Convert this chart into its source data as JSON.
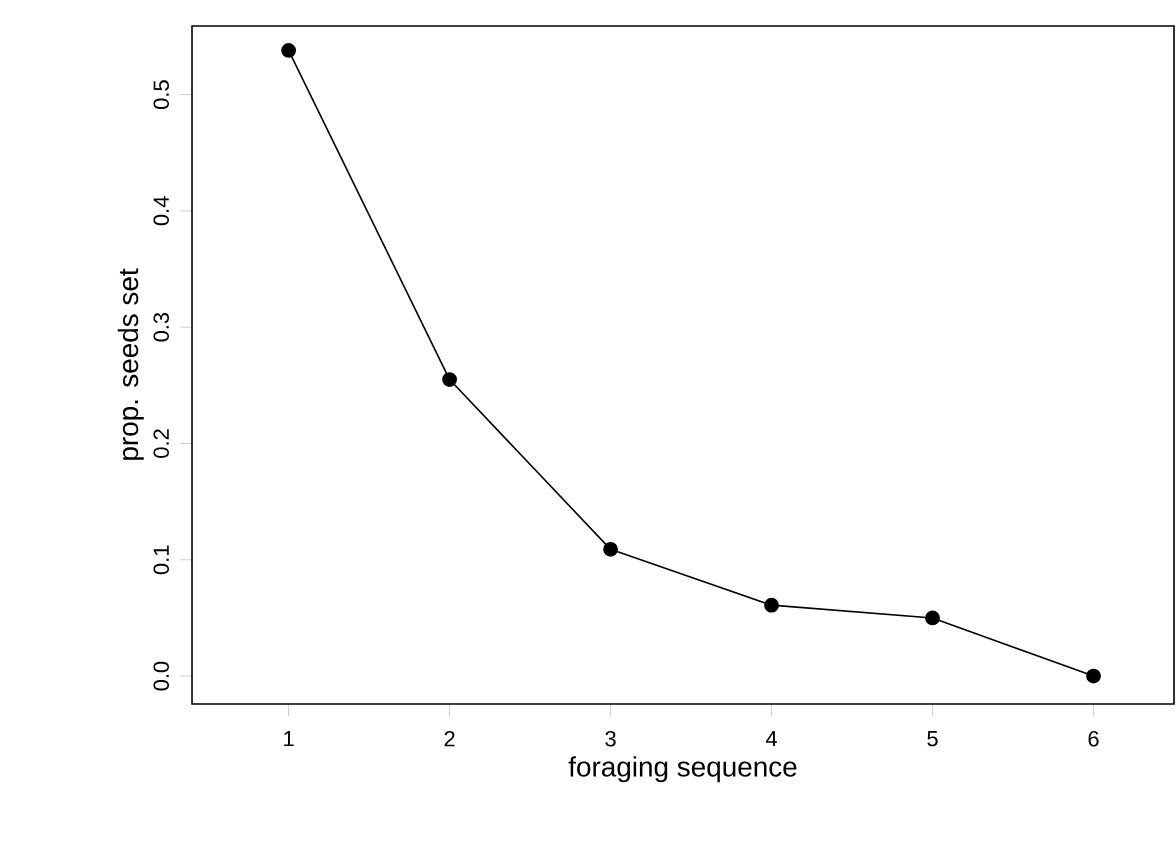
{
  "chart_data": {
    "type": "line",
    "xlabel": "foraging sequence",
    "ylabel": "prop. seeds set",
    "x": [
      1,
      2,
      3,
      4,
      5,
      6
    ],
    "values": [
      0.538,
      0.255,
      0.109,
      0.061,
      0.05,
      0.0
    ],
    "color": "#000000",
    "marker": "circle",
    "line_style": "solid",
    "xlim": [
      0.4,
      6.5
    ],
    "ylim": [
      -0.024,
      0.559
    ],
    "xticks": [
      1,
      2,
      3,
      4,
      5,
      6
    ],
    "yticks": [
      {
        "value": 0.0,
        "label": "0.0"
      },
      0.1,
      0.2,
      0.3,
      0.4,
      0.5
    ],
    "grid": false
  }
}
